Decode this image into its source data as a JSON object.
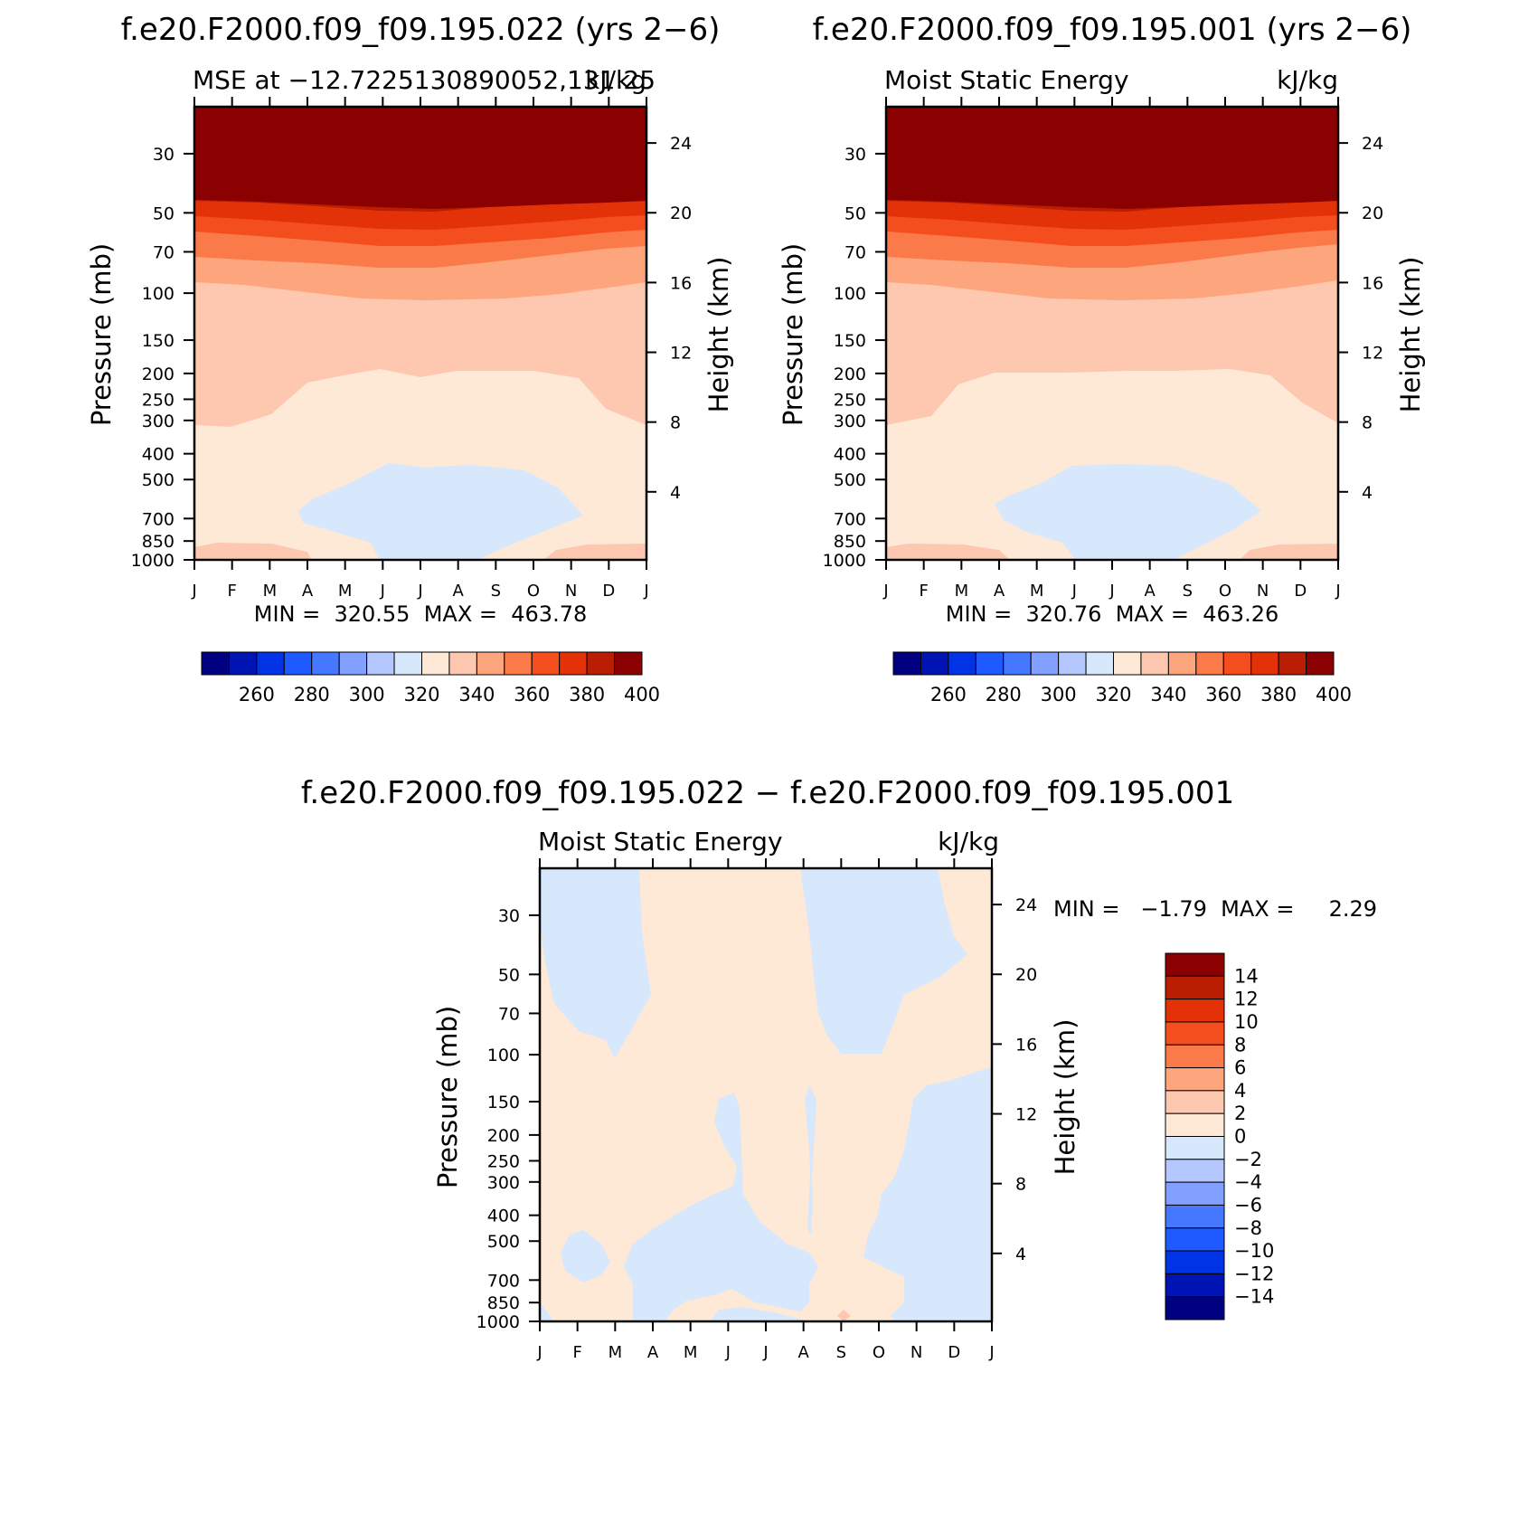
{
  "chart_data": [
    {
      "type": "heatmap",
      "title": "f.e20.F2000.f09_f09.195.022 (yrs 2−6)",
      "left_subtitle": "MSE at −12.7225130890052,131.25",
      "right_subtitle": "kJ/kg",
      "ylabel": "Pressure (mb)",
      "ylabel_right": "Height (km)",
      "x_ticks": [
        "J",
        "F",
        "M",
        "A",
        "M",
        "J",
        "J",
        "A",
        "S",
        "O",
        "N",
        "D",
        "J"
      ],
      "y_ticks": [
        "30",
        "50",
        "70",
        "100",
        "150",
        "200",
        "250",
        "300",
        "400",
        "500",
        "700",
        "850",
        "1000"
      ],
      "y_ticks_right": [
        "24",
        "20",
        "16",
        "12",
        "8",
        "4"
      ],
      "min_max_text": "MIN =  320.55  MAX =  463.78",
      "colorbar": {
        "labels": [
          "260",
          "280",
          "300",
          "320",
          "340",
          "360",
          "380",
          "400"
        ],
        "colors": [
          "#000080",
          "#0014b4",
          "#0032e6",
          "#1e5aff",
          "#4678ff",
          "#82a0ff",
          "#b4c8ff",
          "#d7e8fd",
          "#fee9d7",
          "#fec8b0",
          "#fda57d",
          "#fb7a4a",
          "#f54e1e",
          "#e33208",
          "#b91e02",
          "#8b0000"
        ]
      }
    },
    {
      "type": "heatmap",
      "title": "f.e20.F2000.f09_f09.195.001 (yrs 2−6)",
      "left_subtitle": "Moist Static Energy",
      "right_subtitle": "kJ/kg",
      "ylabel": "Pressure (mb)",
      "ylabel_right": "Height (km)",
      "x_ticks": [
        "J",
        "F",
        "M",
        "A",
        "M",
        "J",
        "J",
        "A",
        "S",
        "O",
        "N",
        "D",
        "J"
      ],
      "y_ticks": [
        "30",
        "50",
        "70",
        "100",
        "150",
        "200",
        "250",
        "300",
        "400",
        "500",
        "700",
        "850",
        "1000"
      ],
      "y_ticks_right": [
        "24",
        "20",
        "16",
        "12",
        "8",
        "4"
      ],
      "min_max_text": "MIN =  320.76  MAX =  463.26",
      "colorbar": {
        "labels": [
          "260",
          "280",
          "300",
          "320",
          "340",
          "360",
          "380",
          "400"
        ],
        "colors": [
          "#000080",
          "#0014b4",
          "#0032e6",
          "#1e5aff",
          "#4678ff",
          "#82a0ff",
          "#b4c8ff",
          "#d7e8fd",
          "#fee9d7",
          "#fec8b0",
          "#fda57d",
          "#fb7a4a",
          "#f54e1e",
          "#e33208",
          "#b91e02",
          "#8b0000"
        ]
      }
    },
    {
      "type": "heatmap",
      "title": "f.e20.F2000.f09_f09.195.022 − f.e20.F2000.f09_f09.195.001",
      "left_subtitle": "Moist Static Energy",
      "right_subtitle": "kJ/kg",
      "ylabel": "Pressure (mb)",
      "ylabel_right": "Height (km)",
      "x_ticks": [
        "J",
        "F",
        "M",
        "A",
        "M",
        "J",
        "J",
        "A",
        "S",
        "O",
        "N",
        "D",
        "J"
      ],
      "y_ticks": [
        "30",
        "50",
        "70",
        "100",
        "150",
        "200",
        "250",
        "300",
        "400",
        "500",
        "700",
        "850",
        "1000"
      ],
      "y_ticks_right": [
        "24",
        "20",
        "16",
        "12",
        "8",
        "4"
      ],
      "min_max_text": "MIN =   −1.79  MAX =     2.29",
      "colorbar": {
        "labels": [
          "14",
          "12",
          "10",
          "8",
          "6",
          "4",
          "2",
          "0",
          "−2",
          "−4",
          "−6",
          "−8",
          "−10",
          "−12",
          "−14"
        ],
        "colors": [
          "#8b0000",
          "#b91e02",
          "#e33208",
          "#f54e1e",
          "#fb7a4a",
          "#fda57d",
          "#fec8b0",
          "#fee9d7",
          "#d7e8fd",
          "#b4c8ff",
          "#82a0ff",
          "#4678ff",
          "#1e5aff",
          "#0032e6",
          "#0014b4",
          "#000080"
        ]
      }
    }
  ]
}
